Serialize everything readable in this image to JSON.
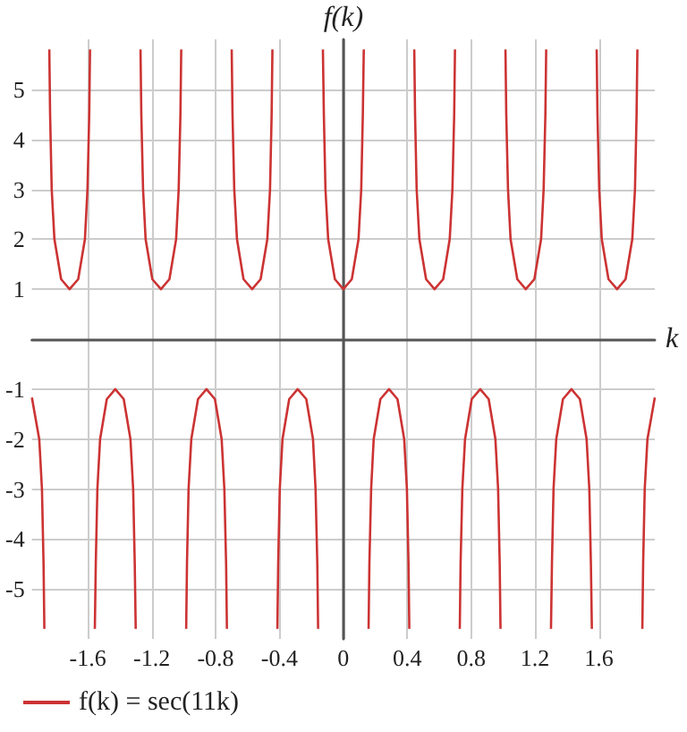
{
  "chart_data": {
    "type": "line",
    "xlabel": "k",
    "ylabel": "f(k)",
    "xlim": [
      -1.95,
      1.95
    ],
    "ylim": [
      -6,
      6
    ],
    "xticks": [
      -1.6,
      -1.2,
      -0.8,
      -0.4,
      0,
      0.4,
      0.8,
      1.2,
      1.6
    ],
    "yticks": [
      -5,
      -4,
      -3,
      -2,
      -1,
      1,
      2,
      3,
      4,
      5
    ],
    "grid": true,
    "legend": "bottom left",
    "marker": "none",
    "line_style": "solid",
    "series": [
      {
        "name": "f(k) = sec(11k)",
        "color": "#cc3333",
        "x": [
          -1.95,
          -1.904,
          -1.887,
          -1.877,
          -1.872,
          -1.86,
          -1.841,
          -1.836,
          -1.826,
          -1.809,
          -1.767,
          -1.714,
          -1.66,
          -1.618,
          -1.602,
          -1.591,
          -1.586,
          -1.57,
          -1.556,
          -1.55,
          -1.54,
          -1.523,
          -1.481,
          -1.428,
          -1.375,
          -1.333,
          -1.316,
          -1.306,
          -1.3,
          -1.285,
          -1.27,
          -1.265,
          -1.254,
          -1.238,
          -1.196,
          -1.142,
          -1.089,
          -1.047,
          -1.031,
          -1.02,
          -1.015,
          -1.0,
          -0.984,
          -0.979,
          -0.969,
          -0.952,
          -0.91,
          -0.857,
          -0.804,
          -0.762,
          -0.745,
          -0.734,
          -0.729,
          -0.714,
          -0.699,
          -0.694,
          -0.683,
          -0.666,
          -0.625,
          -0.571,
          -0.518,
          -0.476,
          -0.459,
          -0.449,
          -0.444,
          -0.43,
          -0.413,
          -0.408,
          -0.398,
          -0.381,
          -0.339,
          -0.286,
          -0.232,
          -0.19,
          -0.174,
          -0.163,
          -0.158,
          -0.14,
          -0.128,
          -0.122,
          -0.112,
          -0.095,
          -0.053,
          0,
          0.053,
          0.095,
          0.112,
          0.122,
          0.128,
          0.14,
          0.158,
          0.163,
          0.174,
          0.19,
          0.232,
          0.286,
          0.339,
          0.381,
          0.398,
          0.408,
          0.413,
          0.43,
          0.444,
          0.449,
          0.459,
          0.476,
          0.518,
          0.571,
          0.625,
          0.666,
          0.683,
          0.694,
          0.699,
          0.714,
          0.729,
          0.734,
          0.745,
          0.762,
          0.804,
          0.857,
          0.91,
          0.952,
          0.969,
          0.979,
          0.984,
          1.0,
          1.015,
          1.02,
          1.031,
          1.047,
          1.089,
          1.142,
          1.196,
          1.238,
          1.254,
          1.265,
          1.27,
          1.285,
          1.3,
          1.306,
          1.316,
          1.333,
          1.375,
          1.428,
          1.481,
          1.523,
          1.54,
          1.55,
          1.556,
          1.57,
          1.586,
          1.591,
          1.602,
          1.618,
          1.66,
          1.714,
          1.767,
          1.809,
          1.826,
          1.836,
          1.841,
          1.86,
          1.872,
          1.877,
          1.887,
          1.904,
          1.95
        ],
        "values": [
          -1.17,
          -2,
          -3,
          -4.5,
          -5.8,
          null,
          5.8,
          4.5,
          3,
          2,
          1.2,
          1,
          1.2,
          2,
          3,
          4.5,
          5.8,
          null,
          -5.8,
          -4.5,
          -3,
          -2,
          -1.2,
          -1,
          -1.2,
          -2,
          -3,
          -4.5,
          -5.8,
          null,
          5.8,
          4.5,
          3,
          2,
          1.2,
          1,
          1.2,
          2,
          3,
          4.5,
          5.8,
          null,
          -5.8,
          -4.5,
          -3,
          -2,
          -1.2,
          -1,
          -1.2,
          -2,
          -3,
          -4.5,
          -5.8,
          null,
          5.8,
          4.5,
          3,
          2,
          1.2,
          1,
          1.2,
          2,
          3,
          4.5,
          5.8,
          null,
          -5.8,
          -4.5,
          -3,
          -2,
          -1.2,
          -1,
          -1.2,
          -2,
          -3,
          -4.5,
          -5.8,
          null,
          5.8,
          4.5,
          3,
          2,
          1.2,
          1,
          1.2,
          2,
          3,
          4.5,
          5.8,
          null,
          -5.8,
          -4.5,
          -3,
          -2,
          -1.2,
          -1,
          -1.2,
          -2,
          -3,
          -4.5,
          -5.8,
          null,
          5.8,
          4.5,
          3,
          2,
          1.2,
          1,
          1.2,
          2,
          3,
          4.5,
          5.8,
          null,
          -5.8,
          -4.5,
          -3,
          -2,
          -1.2,
          -1,
          -1.2,
          -2,
          -3,
          -4.5,
          -5.8,
          null,
          5.8,
          4.5,
          3,
          2,
          1.2,
          1,
          1.2,
          2,
          3,
          4.5,
          5.8,
          null,
          -5.8,
          -4.5,
          -3,
          -2,
          -1.2,
          -1,
          -1.2,
          -2,
          -3,
          -4.5,
          -5.8,
          null,
          5.8,
          4.5,
          3,
          2,
          1.2,
          1,
          1.2,
          2,
          3,
          4.5,
          5.8,
          null,
          -5.8,
          -4.5,
          -3,
          -2,
          -1.17
        ]
      }
    ]
  }
}
